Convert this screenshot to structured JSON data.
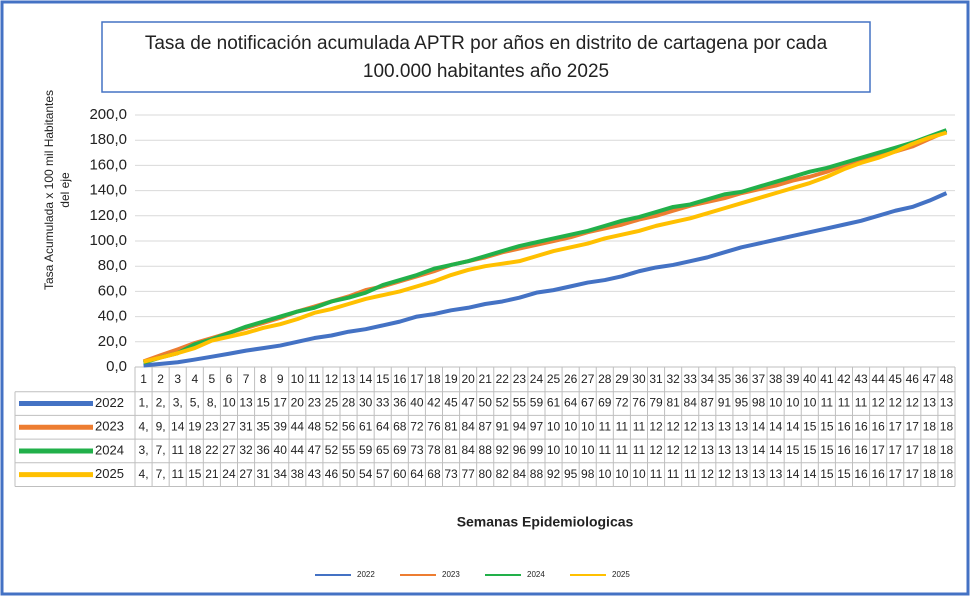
{
  "chart_data": {
    "type": "line",
    "title": [
      "Tasa de notificación acumulada APTR por años en distrito de cartagena por cada",
      "100.000 habitantes año 2025"
    ],
    "ylabel": [
      "Tasa Acumulada x 100 mil Habitantes",
      "del eje"
    ],
    "xlabel": "Semanas Epidemiologicas",
    "ylim": [
      0,
      200
    ],
    "yticks": [
      {
        "value": 0,
        "label": "0,0"
      },
      {
        "value": 20,
        "label": "20,0"
      },
      {
        "value": 40,
        "label": "40,0"
      },
      {
        "value": 60,
        "label": "60,0"
      },
      {
        "value": 80,
        "label": "80,0"
      },
      {
        "value": 100,
        "label": "100,0"
      },
      {
        "value": 120,
        "label": "120,0"
      },
      {
        "value": 140,
        "label": "140,0"
      },
      {
        "value": 160,
        "label": "160,0"
      },
      {
        "value": 180,
        "label": "180,0"
      },
      {
        "value": 200,
        "label": "200,0"
      }
    ],
    "grid": true,
    "categories": [
      1,
      2,
      3,
      4,
      5,
      6,
      7,
      8,
      9,
      10,
      11,
      12,
      13,
      14,
      15,
      16,
      17,
      18,
      19,
      20,
      21,
      22,
      23,
      24,
      25,
      26,
      27,
      28,
      29,
      30,
      31,
      32,
      33,
      34,
      35,
      36,
      37,
      38,
      39,
      40,
      41,
      42,
      43,
      44,
      45,
      46,
      47,
      48
    ],
    "series": [
      {
        "name": "2022",
        "color": "#4472c4",
        "values": [
          1.2,
          2.5,
          3.8,
          5.9,
          8.2,
          10.5,
          13,
          15,
          17,
          20,
          23,
          25,
          28,
          30,
          33,
          36,
          40,
          42,
          45,
          47,
          50,
          52,
          55,
          59,
          61,
          64,
          67,
          69,
          72,
          76,
          79,
          81,
          84,
          87,
          91,
          95,
          98,
          101,
          104,
          107,
          110,
          113,
          116,
          120,
          124,
          127,
          132,
          138
        ]
      },
      {
        "name": "2023",
        "color": "#ed7d31",
        "values": [
          4.5,
          9.3,
          14,
          19,
          23,
          27,
          31,
          35,
          39,
          44,
          48,
          52,
          56,
          61,
          64,
          68,
          72,
          76,
          81,
          84,
          87,
          91,
          94,
          97,
          100,
          103,
          107,
          110,
          113,
          117,
          120,
          124,
          128,
          131,
          134,
          138,
          141,
          144,
          148,
          151,
          155,
          160,
          164,
          168,
          171,
          175,
          181,
          187
        ]
      },
      {
        "name": "2024",
        "color": "#22b04a",
        "values": [
          3.4,
          7.6,
          11,
          18,
          22,
          27,
          32,
          36,
          40,
          44,
          47,
          52,
          55,
          59,
          65,
          69,
          73,
          78,
          81,
          84,
          88,
          92,
          96,
          99,
          102,
          105,
          108,
          112,
          116,
          119,
          123,
          127,
          129,
          133,
          137,
          139,
          143,
          147,
          151,
          155,
          158,
          162,
          166,
          170,
          174,
          178,
          183,
          188
        ]
      },
      {
        "name": "2025",
        "color": "#ffc000",
        "values": [
          4.2,
          7.5,
          11,
          15,
          21,
          24,
          27,
          31,
          34,
          38,
          43,
          46,
          50,
          54,
          57,
          60,
          64,
          68,
          73,
          77,
          80,
          82,
          84,
          88,
          92,
          95,
          98,
          102,
          105,
          108,
          112,
          115,
          118,
          122,
          126,
          130,
          134,
          138,
          142,
          146,
          151,
          157,
          162,
          166,
          171,
          177,
          182,
          186
        ]
      }
    ],
    "data_table": {
      "rows": [
        [
          "1,",
          "2,",
          "3,",
          "5,",
          "8,",
          "10",
          "13",
          "15",
          "17",
          "20",
          "23",
          "25",
          "28",
          "30",
          "33",
          "36",
          "40",
          "42",
          "45",
          "47",
          "50",
          "52",
          "55",
          "59",
          "61",
          "64",
          "67",
          "69",
          "72",
          "76",
          "79",
          "81",
          "84",
          "87",
          "91",
          "95",
          "98",
          "10",
          "10",
          "10",
          "11",
          "11",
          "11",
          "12",
          "12",
          "12",
          "13",
          "13"
        ],
        [
          "4,",
          "9,",
          "14",
          "19",
          "23",
          "27",
          "31",
          "35",
          "39",
          "44",
          "48",
          "52",
          "56",
          "61",
          "64",
          "68",
          "72",
          "76",
          "81",
          "84",
          "87",
          "91",
          "94",
          "97",
          "10",
          "10",
          "10",
          "11",
          "11",
          "11",
          "12",
          "12",
          "12",
          "13",
          "13",
          "13",
          "14",
          "14",
          "14",
          "15",
          "15",
          "16",
          "16",
          "16",
          "17",
          "17",
          "18",
          "18"
        ],
        [
          "3,",
          "7,",
          "11",
          "18",
          "22",
          "27",
          "32",
          "36",
          "40",
          "44",
          "47",
          "52",
          "55",
          "59",
          "65",
          "69",
          "73",
          "78",
          "81",
          "84",
          "88",
          "92",
          "96",
          "99",
          "10",
          "10",
          "10",
          "11",
          "11",
          "11",
          "12",
          "12",
          "12",
          "13",
          "13",
          "13",
          "14",
          "14",
          "15",
          "15",
          "15",
          "16",
          "16",
          "17",
          "17",
          "17",
          "18",
          "18"
        ],
        [
          "4,",
          "7,",
          "11",
          "15",
          "21",
          "24",
          "27",
          "31",
          "34",
          "38",
          "43",
          "46",
          "50",
          "54",
          "57",
          "60",
          "64",
          "68",
          "73",
          "77",
          "80",
          "82",
          "84",
          "88",
          "92",
          "95",
          "98",
          "10",
          "10",
          "10",
          "11",
          "11",
          "11",
          "12",
          "12",
          "13",
          "13",
          "13",
          "14",
          "14",
          "15",
          "15",
          "16",
          "16",
          "17",
          "17",
          "18",
          "18"
        ]
      ]
    }
  }
}
